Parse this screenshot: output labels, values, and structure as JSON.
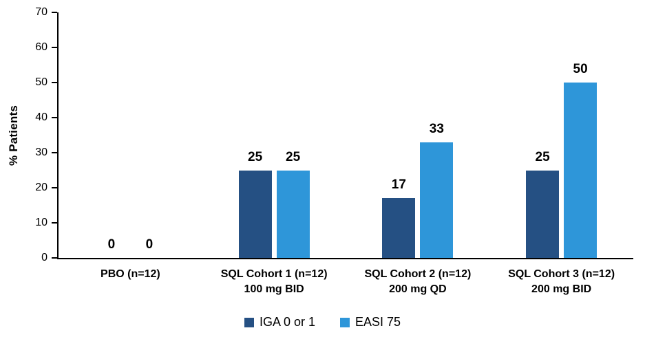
{
  "chart_data": {
    "type": "bar",
    "title": "",
    "xlabel": "",
    "ylabel": "% Patients",
    "ylim": [
      0,
      70
    ],
    "ytick_step": 10,
    "grid": false,
    "data_labels": true,
    "legend_position": "bottom",
    "background_color": "#FFFFFF",
    "axis_color": "#000000",
    "text_color": "#000000",
    "categories": [
      {
        "line1": "PBO (n=12)",
        "line2": ""
      },
      {
        "line1": "SQL Cohort 1 (n=12)",
        "line2": "100 mg BID"
      },
      {
        "line1": "SQL Cohort 2 (n=12)",
        "line2": "200 mg QD"
      },
      {
        "line1": "SQL Cohort 3 (n=12)",
        "line2": "200 mg BID"
      }
    ],
    "series": [
      {
        "name": "IGA 0 or 1",
        "color": "#255083",
        "values": [
          0,
          25,
          17,
          25
        ]
      },
      {
        "name": "EASI 75",
        "color": "#2E96D9",
        "values": [
          0,
          25,
          33,
          50
        ]
      }
    ]
  }
}
